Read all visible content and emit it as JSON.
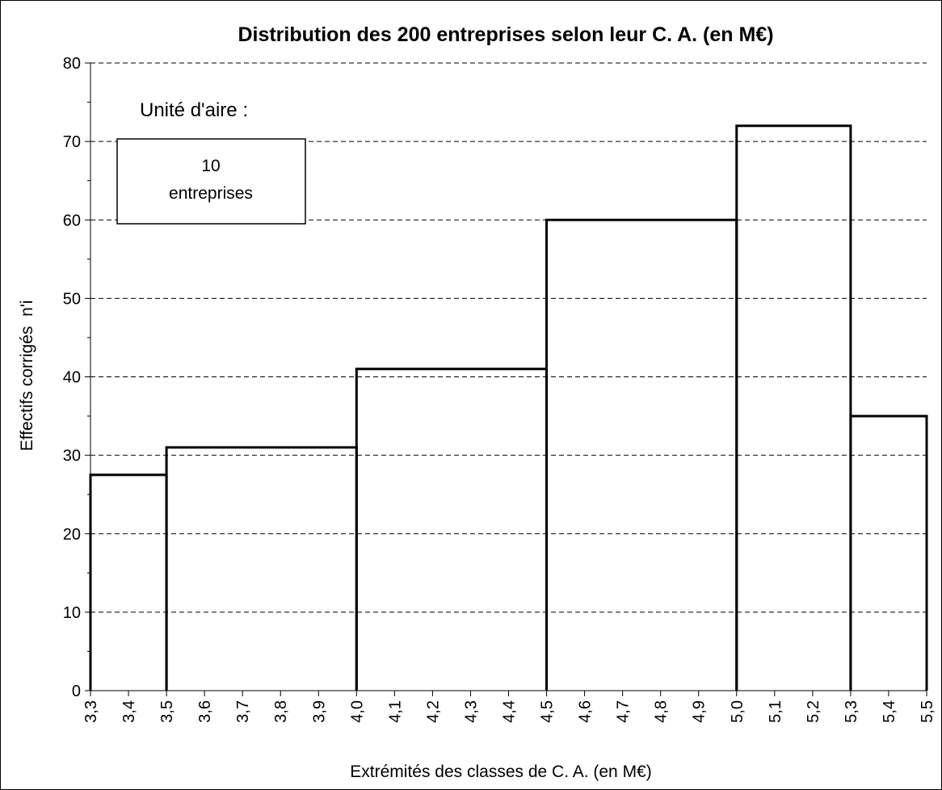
{
  "chart_data": {
    "type": "bar",
    "title": "Distribution des 200 entreprises selon leur C. A. (en M€)",
    "xlabel": "Extrémités des classes de C. A. (en M€)",
    "ylabel": "Effectifs corrigés  n'i",
    "ylim": [
      0,
      80
    ],
    "yticks": [
      0,
      10,
      20,
      30,
      40,
      50,
      60,
      70,
      80
    ],
    "grid": "horizontal dashed",
    "xtick_labels": [
      "3,3",
      "3,4",
      "3,5",
      "3,6",
      "3,7",
      "3,8",
      "3,9",
      "4,0",
      "4,1",
      "4,2",
      "4,3",
      "4,4",
      "4,5",
      "4,6",
      "4,7",
      "4,8",
      "4,9",
      "5,0",
      "5,1",
      "5,2",
      "5,3",
      "5,4",
      "5,5"
    ],
    "bins": [
      {
        "from": "3,3",
        "to": "3,5",
        "value": 27.5
      },
      {
        "from": "3,5",
        "to": "4,0",
        "value": 31
      },
      {
        "from": "4,0",
        "to": "4,5",
        "value": 41
      },
      {
        "from": "4,5",
        "to": "5,0",
        "value": 60
      },
      {
        "from": "5,0",
        "to": "5,3",
        "value": 72
      },
      {
        "from": "5,3",
        "to": "5,5",
        "value": 35
      }
    ],
    "area_unit": {
      "label": "Unité d'aire :",
      "line1": "10",
      "line2": "entreprises"
    }
  }
}
